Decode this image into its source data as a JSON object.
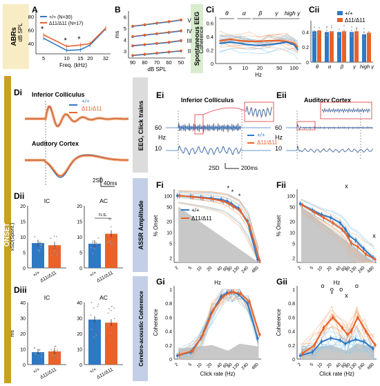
{
  "colors": {
    "wt": "#2f78c4",
    "ko": "#e8622a",
    "wt_light": "#8cc8ec",
    "ko_light": "#f2ad7e",
    "gray": "#c8c8c8",
    "yellow_bg": "#f8ecc4",
    "green_bg": "#d9ecd0",
    "gray_bg": "#dcdcdc",
    "blue_bg": "#c3cfe6",
    "onset_bg": "#c9a020"
  },
  "sections": {
    "abrs": "ABRs",
    "spont": "Spontaneous EEG",
    "onset": "ONSET",
    "eeg_click": "EEG, Click trains",
    "assr": "ASSR Amplitude",
    "cac": "Cerebro-acoustic Coherence"
  },
  "legend": {
    "wt": "+/+",
    "ko": "Δ11/Δ11",
    "wt_n": "+/+ (N=30)",
    "ko_n": "Δ11/Δ11 (N=17)"
  },
  "chart_data": [
    {
      "id": "A",
      "type": "line",
      "title": "",
      "xlabel": "Freq. (kHz)",
      "ylabel": "dB SPL",
      "x": [
        5,
        10,
        15,
        20,
        32
      ],
      "xticks": [
        "5",
        "10",
        "15",
        "20",
        "32"
      ],
      "yticks": [
        "40",
        "60",
        "80"
      ],
      "ylim": [
        25,
        88
      ],
      "series": [
        {
          "name": "+/+ (N=30)",
          "values": [
            48,
            30,
            31,
            38,
            62
          ]
        },
        {
          "name": "Δ11/Δ11 (N=17)",
          "values": [
            53,
            36,
            38,
            40,
            63
          ]
        }
      ],
      "annotations": [
        "*",
        "*",
        "*"
      ],
      "legend": "top-left"
    },
    {
      "id": "B",
      "type": "line",
      "title": "",
      "xlabel": "dB SPL",
      "ylabel": "ms",
      "x": [
        90,
        80,
        70,
        60,
        50
      ],
      "xticks": [
        "90",
        "80",
        "70",
        "60",
        "50"
      ],
      "yticks": [
        "3",
        "4",
        "5",
        "6"
      ],
      "ylim": [
        2.4,
        6.5
      ],
      "series": [
        {
          "name": "II",
          "values": [
            2.6,
            2.7,
            2.8,
            2.9,
            3.0
          ]
        },
        {
          "name": "III",
          "values": [
            3.45,
            3.55,
            3.65,
            3.75,
            3.9
          ]
        },
        {
          "name": "IV",
          "values": [
            4.25,
            4.38,
            4.5,
            4.62,
            4.75
          ]
        },
        {
          "name": "V",
          "values": [
            5.15,
            5.28,
            5.42,
            5.55,
            5.7
          ]
        }
      ],
      "wave_labels": [
        "V",
        "IV",
        "III",
        "II"
      ]
    },
    {
      "id": "Ci",
      "type": "line",
      "title": "",
      "xlabel": "Hz",
      "ylabel": "Coherence",
      "xticks": [
        "5",
        "10",
        "20",
        "50",
        "100"
      ],
      "yticks": [
        "0",
        "0.2",
        "0.4",
        "0.6"
      ],
      "ylim": [
        0,
        0.7
      ],
      "bands": [
        "θ",
        "α",
        "β",
        "γ",
        "high γ"
      ],
      "x": [
        3,
        5,
        8,
        12,
        20,
        30,
        50,
        70,
        100,
        120
      ],
      "series": [
        {
          "name": "+/+",
          "values": [
            0.3,
            0.32,
            0.3,
            0.28,
            0.27,
            0.28,
            0.3,
            0.32,
            0.28,
            0.2
          ]
        },
        {
          "name": "Δ11/Δ11",
          "values": [
            0.34,
            0.36,
            0.34,
            0.33,
            0.33,
            0.34,
            0.34,
            0.33,
            0.3,
            0.24
          ]
        }
      ]
    },
    {
      "id": "Cii",
      "type": "bar",
      "title": "",
      "xlabel": "",
      "ylabel": "",
      "categories": [
        "θ",
        "α",
        "β",
        "γ",
        "high γ"
      ],
      "yticks": [
        "0",
        "0.2",
        "0.4"
      ],
      "ylim": [
        0,
        0.55
      ],
      "series": [
        {
          "name": "+/+",
          "values": [
            0.41,
            0.4,
            0.4,
            0.4,
            0.37
          ]
        },
        {
          "name": "Δ11/Δ11",
          "values": [
            0.42,
            0.41,
            0.41,
            0.41,
            0.39
          ]
        }
      ],
      "legend": "top-right"
    },
    {
      "id": "Di",
      "type": "line",
      "titles": [
        "Inferior Colliculus",
        "Auditory Cortex"
      ],
      "scalebar": {
        "amp": "2SD",
        "time": "40ms"
      }
    },
    {
      "id": "Dii",
      "type": "bar",
      "ylabel": "xSD(Spont.)",
      "panels": [
        "IC",
        "AC"
      ],
      "categories": [
        "+/+",
        "Δ11/Δ11"
      ],
      "yticks": [
        "0",
        "5",
        "10",
        "15",
        "20"
      ],
      "ylim": [
        0,
        20
      ],
      "series": [
        {
          "name": "IC",
          "values": [
            8.0,
            7.3
          ]
        },
        {
          "name": "AC",
          "values": [
            7.8,
            11.0
          ]
        }
      ],
      "annotation": "n.s."
    },
    {
      "id": "Diii",
      "type": "bar",
      "ylabel": "ms",
      "panels": [
        "IC",
        "AC"
      ],
      "categories": [
        "+/+",
        "Δ11/Δ11"
      ],
      "yticks": [
        "0",
        "10",
        "20",
        "30",
        "40"
      ],
      "ylim": [
        0,
        40
      ],
      "series": [
        {
          "name": "IC",
          "values": [
            8.0,
            8.5
          ]
        },
        {
          "name": "AC",
          "values": [
            29.0,
            27.0
          ]
        }
      ]
    },
    {
      "id": "Ei",
      "type": "line",
      "title": "Inferior Colliculus",
      "rows": [
        "60",
        "10"
      ],
      "row_unit": "Hz",
      "scalebar": {
        "amp": "2SD",
        "time": "200ms"
      }
    },
    {
      "id": "Eii",
      "type": "line",
      "title": "Auditory Cortex",
      "rows": [
        "60",
        "10"
      ],
      "row_unit": "Hz"
    },
    {
      "id": "Fi",
      "type": "line",
      "title": "",
      "xlabel": "",
      "ylabel": "% Onset",
      "log_y": true,
      "x": [
        2,
        5,
        10,
        20,
        40,
        60,
        80,
        130,
        240,
        480
      ],
      "xticks": [
        "2",
        "5",
        "10",
        "20",
        "40",
        "60",
        "80",
        "130",
        "240",
        "480"
      ],
      "yticks": [
        "2",
        "5",
        "10",
        "20",
        "50",
        "100"
      ],
      "ylim": [
        1.5,
        150
      ],
      "series": [
        {
          "name": "+/+",
          "values": [
            100,
            95,
            90,
            85,
            78,
            70,
            60,
            45,
            20,
            1.8
          ]
        },
        {
          "name": "Δ11/Δ11",
          "values": [
            100,
            92,
            86,
            80,
            70,
            60,
            50,
            38,
            15,
            1.7
          ]
        }
      ],
      "annotations": [
        "*",
        "*",
        "*"
      ],
      "legend": "bottom-left"
    },
    {
      "id": "Fii",
      "type": "line",
      "title": "",
      "xlabel": "",
      "ylabel": "% Onset",
      "log_y": true,
      "x": [
        2,
        5,
        10,
        20,
        40,
        60,
        80,
        130,
        240,
        480
      ],
      "xticks": [
        "2",
        "5",
        "10",
        "20",
        "40",
        "60",
        "80",
        "130",
        "240",
        "480"
      ],
      "yticks": [
        "2",
        "5",
        "10",
        "20",
        "50",
        "100"
      ],
      "ylim": [
        1.5,
        150
      ],
      "series": [
        {
          "name": "+/+",
          "values": [
            60,
            40,
            30,
            25,
            18,
            12,
            8,
            6,
            3.5,
            2
          ]
        },
        {
          "name": "Δ11/Δ11",
          "values": [
            55,
            35,
            25,
            18,
            12,
            8,
            5,
            4,
            2.5,
            1.8
          ]
        }
      ],
      "annotations": [
        "x",
        "x"
      ]
    },
    {
      "id": "Gi",
      "type": "line",
      "title": "Hz",
      "xlabel": "Click rate (Hz)",
      "ylabel": "Coherence",
      "x": [
        2,
        5,
        10,
        20,
        40,
        60,
        80,
        130,
        240,
        480
      ],
      "xticks": [
        "2",
        "5",
        "10",
        "20",
        "40",
        "60",
        "80",
        "130",
        "240",
        "480"
      ],
      "yticks": [
        "0",
        "0.2",
        "0.4",
        "0.6",
        "0.8",
        "1"
      ],
      "ylim": [
        0,
        1.05
      ],
      "series": [
        {
          "name": "+/+",
          "values": [
            0.05,
            0.1,
            0.3,
            0.65,
            0.9,
            0.95,
            0.96,
            0.93,
            0.8,
            0.3
          ]
        },
        {
          "name": "Δ11/Δ11",
          "values": [
            0.06,
            0.12,
            0.35,
            0.7,
            0.9,
            0.95,
            0.96,
            0.94,
            0.82,
            0.35
          ]
        }
      ]
    },
    {
      "id": "Gii",
      "type": "line",
      "title": "Hz",
      "xlabel": "Click rate (Hz)",
      "ylabel": "Coherence",
      "x": [
        2,
        5,
        10,
        20,
        40,
        60,
        80,
        130,
        240,
        480
      ],
      "xticks": [
        "2",
        "5",
        "10",
        "20",
        "40",
        "60",
        "80",
        "130",
        "240",
        "480"
      ],
      "yticks": [
        "0",
        "0.2",
        "0.4",
        "0.6",
        "0.8",
        "1"
      ],
      "ylim": [
        0,
        1.05
      ],
      "series": [
        {
          "name": "+/+",
          "values": [
            0.05,
            0.1,
            0.25,
            0.3,
            0.27,
            0.22,
            0.25,
            0.28,
            0.25,
            0.15
          ]
        },
        {
          "name": "Δ11/Δ11",
          "values": [
            0.08,
            0.2,
            0.45,
            0.6,
            0.45,
            0.35,
            0.4,
            0.6,
            0.4,
            0.2
          ]
        }
      ],
      "annotations": [
        "o",
        "o",
        "o",
        "*",
        "x",
        "o"
      ]
    }
  ]
}
